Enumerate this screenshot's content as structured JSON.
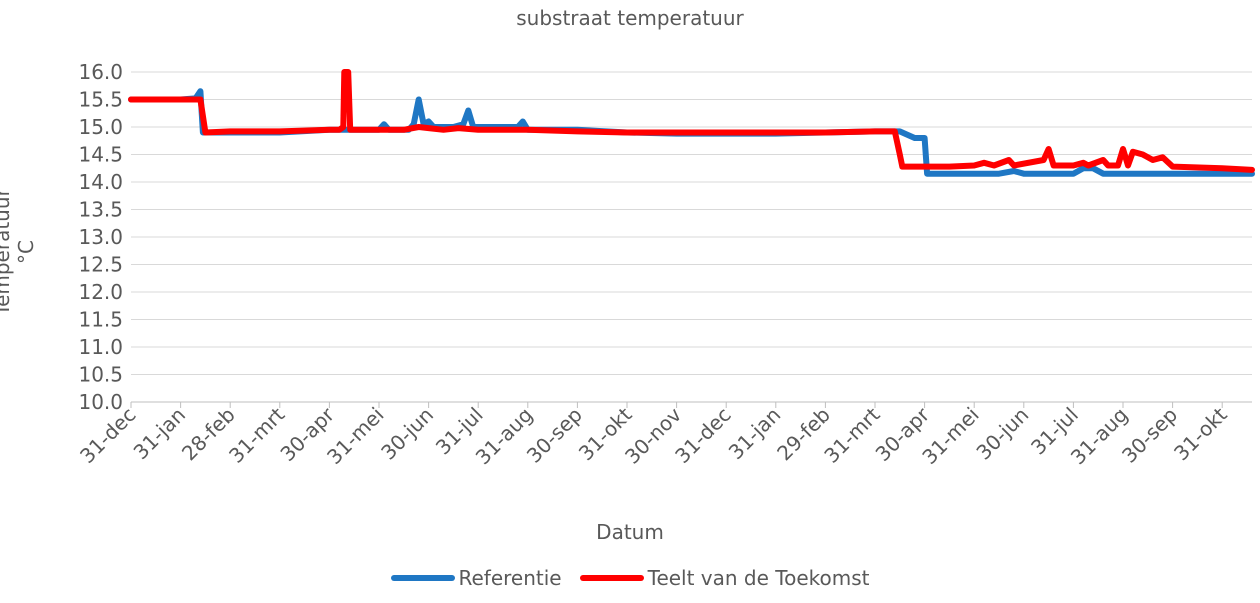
{
  "chart_data": {
    "type": "line",
    "title": "substraat temperatuur",
    "xlabel": "Datum",
    "ylabel": "Temperatuur °C",
    "ylim": [
      10.0,
      16.0
    ],
    "yticks": [
      "10.0",
      "10.5",
      "11.0",
      "11.5",
      "12.0",
      "12.5",
      "13.0",
      "13.5",
      "14.0",
      "14.5",
      "15.0",
      "15.5",
      "16.0"
    ],
    "categories": [
      "31-dec",
      "31-jan",
      "28-feb",
      "31-mrt",
      "30-apr",
      "31-mei",
      "30-jun",
      "31-jul",
      "31-aug",
      "30-sep",
      "31-okt",
      "30-nov",
      "31-dec",
      "31-jan",
      "29-feb",
      "31-mrt",
      "30-apr",
      "31-mei",
      "30-jun",
      "31-jul",
      "31-aug",
      "30-sep",
      "31-okt"
    ],
    "grid": true,
    "legend": "bottom",
    "series": [
      {
        "name": "Referentie",
        "color": "#1f77c4",
        "points": [
          [
            0,
            15.5
          ],
          [
            0.5,
            15.5
          ],
          [
            1.0,
            15.5
          ],
          [
            1.3,
            15.52
          ],
          [
            1.4,
            15.65
          ],
          [
            1.45,
            14.9
          ],
          [
            2.0,
            14.9
          ],
          [
            3.0,
            14.9
          ],
          [
            4.0,
            14.95
          ],
          [
            4.3,
            14.95
          ],
          [
            4.5,
            14.95
          ],
          [
            5.0,
            14.95
          ],
          [
            5.1,
            15.05
          ],
          [
            5.2,
            14.95
          ],
          [
            5.6,
            14.95
          ],
          [
            5.7,
            15.05
          ],
          [
            5.8,
            15.5
          ],
          [
            5.9,
            15.05
          ],
          [
            6.0,
            15.1
          ],
          [
            6.1,
            15.0
          ],
          [
            6.5,
            15.0
          ],
          [
            6.7,
            15.05
          ],
          [
            6.8,
            15.3
          ],
          [
            6.9,
            15.0
          ],
          [
            7.5,
            15.0
          ],
          [
            7.8,
            15.0
          ],
          [
            7.9,
            15.1
          ],
          [
            8.0,
            14.95
          ],
          [
            9.0,
            14.95
          ],
          [
            10.0,
            14.9
          ],
          [
            11.0,
            14.88
          ],
          [
            12.0,
            14.88
          ],
          [
            13.0,
            14.88
          ],
          [
            14.0,
            14.9
          ],
          [
            15.0,
            14.92
          ],
          [
            15.5,
            14.92
          ],
          [
            15.6,
            14.88
          ],
          [
            15.8,
            14.8
          ],
          [
            16.0,
            14.8
          ],
          [
            16.05,
            14.15
          ],
          [
            17.0,
            14.15
          ],
          [
            17.5,
            14.15
          ],
          [
            17.8,
            14.2
          ],
          [
            18.0,
            14.15
          ],
          [
            18.5,
            14.15
          ],
          [
            19.0,
            14.15
          ],
          [
            19.2,
            14.25
          ],
          [
            19.4,
            14.25
          ],
          [
            19.6,
            14.15
          ],
          [
            20.0,
            14.15
          ],
          [
            21.0,
            14.15
          ],
          [
            22.0,
            14.15
          ],
          [
            22.6,
            14.15
          ]
        ]
      },
      {
        "name": "Teelt van de Toekomst",
        "color": "#ff0000",
        "points": [
          [
            0,
            15.5
          ],
          [
            0.5,
            15.5
          ],
          [
            1.0,
            15.5
          ],
          [
            1.4,
            15.5
          ],
          [
            1.5,
            14.9
          ],
          [
            2.0,
            14.92
          ],
          [
            3.0,
            14.92
          ],
          [
            4.0,
            14.95
          ],
          [
            4.2,
            14.95
          ],
          [
            4.28,
            15.0
          ],
          [
            4.3,
            16.0
          ],
          [
            4.38,
            16.0
          ],
          [
            4.42,
            14.95
          ],
          [
            5.0,
            14.95
          ],
          [
            5.5,
            14.95
          ],
          [
            5.8,
            15.0
          ],
          [
            6.0,
            14.98
          ],
          [
            6.3,
            14.95
          ],
          [
            6.6,
            14.98
          ],
          [
            7.0,
            14.95
          ],
          [
            8.0,
            14.95
          ],
          [
            9.0,
            14.92
          ],
          [
            10.0,
            14.9
          ],
          [
            11.0,
            14.9
          ],
          [
            12.0,
            14.9
          ],
          [
            13.0,
            14.9
          ],
          [
            14.0,
            14.9
          ],
          [
            15.0,
            14.92
          ],
          [
            15.4,
            14.92
          ],
          [
            15.5,
            14.5
          ],
          [
            15.55,
            14.28
          ],
          [
            16.0,
            14.28
          ],
          [
            16.5,
            14.28
          ],
          [
            17.0,
            14.3
          ],
          [
            17.2,
            14.35
          ],
          [
            17.4,
            14.3
          ],
          [
            17.7,
            14.4
          ],
          [
            17.8,
            14.3
          ],
          [
            18.4,
            14.4
          ],
          [
            18.5,
            14.6
          ],
          [
            18.6,
            14.3
          ],
          [
            19.0,
            14.3
          ],
          [
            19.2,
            14.35
          ],
          [
            19.3,
            14.3
          ],
          [
            19.6,
            14.4
          ],
          [
            19.7,
            14.3
          ],
          [
            19.9,
            14.3
          ],
          [
            20.0,
            14.6
          ],
          [
            20.1,
            14.3
          ],
          [
            20.2,
            14.55
          ],
          [
            20.4,
            14.5
          ],
          [
            20.6,
            14.4
          ],
          [
            20.8,
            14.45
          ],
          [
            21.0,
            14.28
          ],
          [
            22.0,
            14.25
          ],
          [
            22.6,
            14.22
          ]
        ]
      }
    ]
  }
}
